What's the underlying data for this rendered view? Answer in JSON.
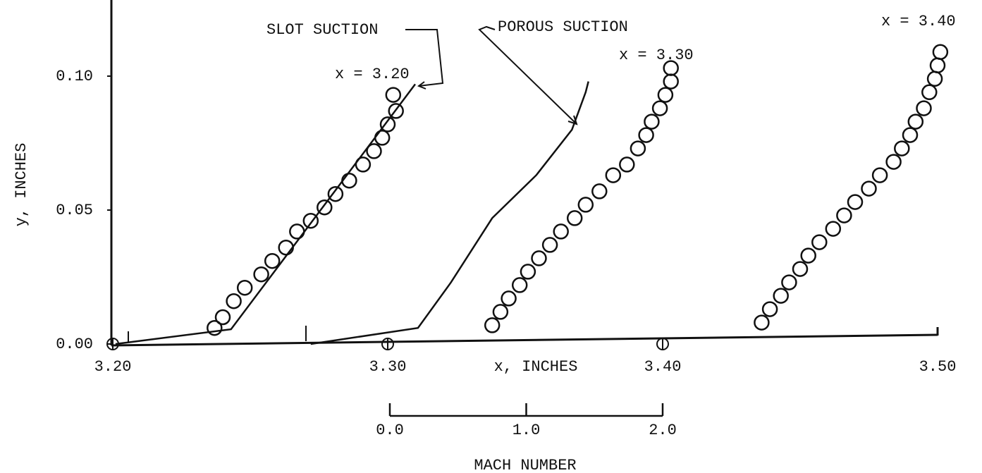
{
  "chart_data": {
    "type": "scatter",
    "xlabel": "x,  INCHES",
    "ylabel": "y,  INCHES",
    "xlim": [
      3.2,
      3.5
    ],
    "ylim": [
      0,
      0.125
    ],
    "xticks": [
      {
        "value": 3.2,
        "label": "3.20"
      },
      {
        "value": 3.3,
        "label": "3.30"
      },
      {
        "value": 3.4,
        "label": "3.40"
      },
      {
        "value": 3.5,
        "label": "3.50"
      }
    ],
    "yticks": [
      {
        "value": 0,
        "label": "0.00"
      },
      {
        "value": 0.05,
        "label": "0.05"
      },
      {
        "value": 0.1,
        "label": "0.10"
      }
    ],
    "mach_axis": {
      "label": "MACH NUMBER",
      "ticks": [
        {
          "value": 0,
          "label": "0.0"
        },
        {
          "value": 1,
          "label": "1.0"
        },
        {
          "value": 2,
          "label": "2.0"
        }
      ]
    },
    "color": "#111111",
    "series": [
      {
        "name": "x = 3.20",
        "kind": "markers",
        "x": [
          3.237,
          3.24,
          3.244,
          3.248,
          3.254,
          3.258,
          3.263,
          3.267,
          3.272,
          3.277,
          3.281,
          3.286,
          3.291,
          3.295,
          3.298,
          3.3,
          3.303,
          3.302
        ],
        "values": [
          0.006,
          0.01,
          0.016,
          0.021,
          0.026,
          0.031,
          0.036,
          0.042,
          0.046,
          0.051,
          0.056,
          0.061,
          0.067,
          0.072,
          0.077,
          0.082,
          0.087,
          0.093
        ]
      },
      {
        "name": "x = 3.30",
        "kind": "markers",
        "x": [
          3.338,
          3.341,
          3.344,
          3.348,
          3.351,
          3.355,
          3.359,
          3.363,
          3.368,
          3.372,
          3.377,
          3.382,
          3.387,
          3.391,
          3.394,
          3.396,
          3.399,
          3.401,
          3.403,
          3.403
        ],
        "values": [
          0.007,
          0.012,
          0.017,
          0.022,
          0.027,
          0.032,
          0.037,
          0.042,
          0.047,
          0.052,
          0.057,
          0.063,
          0.067,
          0.073,
          0.078,
          0.083,
          0.088,
          0.093,
          0.098,
          0.103
        ]
      },
      {
        "name": "x = 3.40",
        "kind": "markers",
        "x": [
          3.436,
          3.439,
          3.443,
          3.446,
          3.45,
          3.453,
          3.457,
          3.462,
          3.466,
          3.47,
          3.475,
          3.479,
          3.484,
          3.487,
          3.49,
          3.492,
          3.495,
          3.497,
          3.499,
          3.5,
          3.501
        ],
        "values": [
          0.008,
          0.013,
          0.018,
          0.023,
          0.028,
          0.033,
          0.038,
          0.043,
          0.048,
          0.053,
          0.058,
          0.063,
          0.068,
          0.073,
          0.078,
          0.083,
          0.088,
          0.094,
          0.099,
          0.104,
          0.109
        ]
      },
      {
        "name": "SLOT SUCTION",
        "kind": "line",
        "x": [
          3.201,
          3.243,
          3.31
        ],
        "values": [
          0,
          0.0055,
          0.097
        ]
      },
      {
        "name": "POROUS SUCTION",
        "kind": "line",
        "x": [
          3.272,
          3.311,
          3.323,
          3.338,
          3.354,
          3.367,
          3.372,
          3.373
        ],
        "values": [
          0,
          0.006,
          0.023,
          0.047,
          0.063,
          0.08,
          0.094,
          0.098
        ]
      }
    ]
  }
}
